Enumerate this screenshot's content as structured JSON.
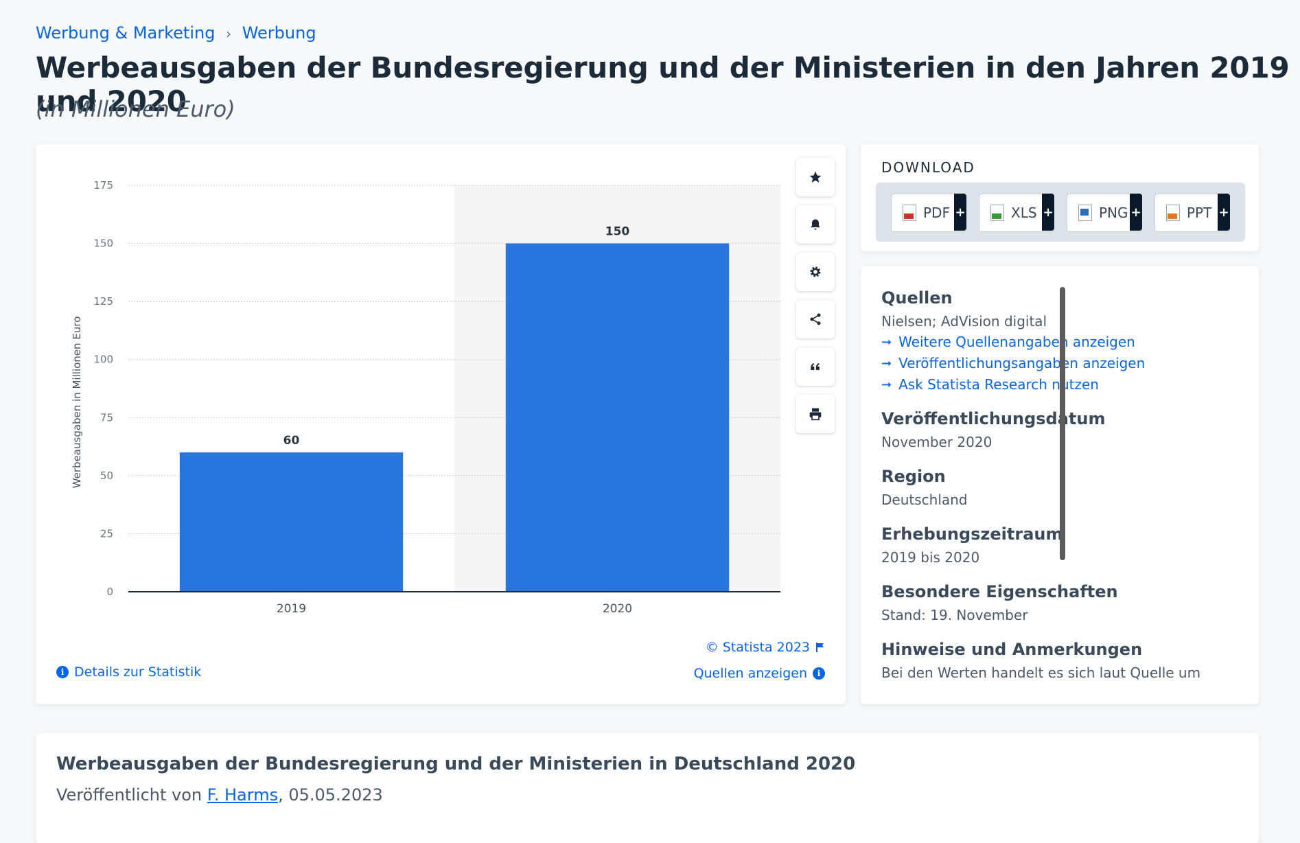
{
  "breadcrumb": {
    "item1": "Werbung & Marketing",
    "separator": "›",
    "item2": "Werbung"
  },
  "header": {
    "title": "Werbeausgaben der Bundesregierung und der Ministerien in den Jahren 2019 und 2020",
    "subtitle": "(in Millionen Euro)"
  },
  "chart_footer": {
    "copyright": "© Statista 2023",
    "sources_link": "Quellen anzeigen",
    "details_link": "Details zur Statistik"
  },
  "tools": [
    "star-icon",
    "bell-icon",
    "gear-icon",
    "share-icon",
    "quote-icon",
    "print-icon"
  ],
  "download": {
    "title": "DOWNLOAD",
    "buttons": [
      {
        "label": "PDF",
        "color": "#d32f2f"
      },
      {
        "label": "XLS",
        "color": "#3a9a3a"
      },
      {
        "label": "PNG",
        "color": "#2d6fb8"
      },
      {
        "label": "PPT",
        "color": "#e87722"
      }
    ],
    "plus": "+"
  },
  "info": {
    "sources_heading": "Quellen",
    "sources_value": "Nielsen; AdVision digital",
    "links": [
      "Weitere Quellenangaben anzeigen",
      "Veröffentlichungsangaben anzeigen",
      "Ask Statista Research nutzen"
    ],
    "pubdate_heading": "Veröffentlichungsdatum",
    "pubdate_value": "November 2020",
    "region_heading": "Region",
    "region_value": "Deutschland",
    "period_heading": "Erhebungszeitraum",
    "period_value": "2019 bis 2020",
    "special_heading": "Besondere Eigenschaften",
    "special_value": "Stand: 19. November",
    "notes_heading": "Hinweise und Anmerkungen",
    "notes_value": "Bei den Werten handelt es sich laut Quelle um"
  },
  "bottom": {
    "title": "Werbeausgaben der Bundesregierung und der Ministerien in Deutschland 2020",
    "published_prefix": "Veröffentlicht von ",
    "author": "F. Harms",
    "published_suffix": ", 05.05.2023"
  },
  "chart_data": {
    "type": "bar",
    "categories": [
      "2019",
      "2020"
    ],
    "values": [
      60,
      150
    ],
    "ylabel": "Werbeausgaben in Millionen Euro",
    "ylim": [
      0,
      175
    ],
    "yticks": [
      0,
      25,
      50,
      75,
      100,
      125,
      150,
      175
    ],
    "bar_color": "#2876dd",
    "grid": true
  }
}
